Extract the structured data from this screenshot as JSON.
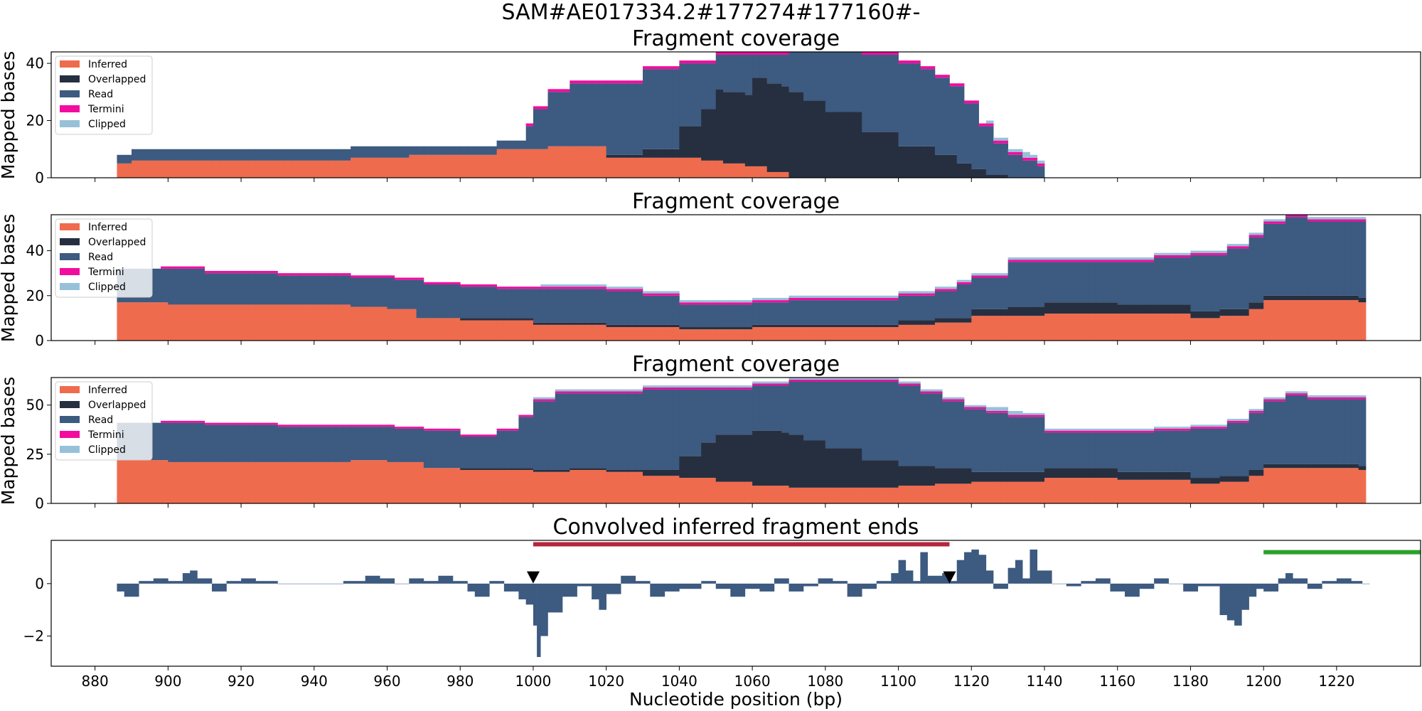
{
  "suptitle": "SAM#AE017334.2#177274#177160#-",
  "colors": {
    "inferred": "#ef6b4d",
    "overlapped": "#262f40",
    "read": "#3d5a80",
    "termini": "#f20d9f",
    "clipped": "#98c1d9",
    "ends_bar": "#3d5a80",
    "red_interval": "#b5253c",
    "green_interval": "#2ca02c",
    "marker": "#000000"
  },
  "chart_data": [
    {
      "type": "area",
      "title": "Fragment coverage",
      "ylabel": "Mapped bases",
      "xlim": [
        868,
        1243
      ],
      "ylim": [
        0,
        44
      ],
      "yticks": [
        0,
        20,
        40
      ],
      "legend": {
        "placement": "top-left",
        "entries": [
          "Inferred",
          "Overlapped",
          "Read",
          "Termini",
          "Clipped"
        ]
      },
      "series": {
        "inferred": {
          "name": "Inferred",
          "x": [
            886,
            890,
            920,
            950,
            966,
            990,
            1004,
            1012,
            1020,
            1030,
            1038,
            1046,
            1052,
            1058,
            1064,
            1070
          ],
          "values": [
            5,
            6,
            6,
            7,
            8,
            10,
            11,
            11,
            7,
            7,
            7,
            6,
            5,
            4,
            2,
            0
          ]
        },
        "overlapped": {
          "name": "Overlapped",
          "x": [
            886,
            1020,
            1030,
            1040,
            1046,
            1050,
            1060,
            1068,
            1074,
            1080,
            1090,
            1100,
            1110,
            1116,
            1120,
            1124,
            1130
          ],
          "values": [
            0,
            1,
            3,
            11,
            18,
            25,
            31,
            30,
            27,
            23,
            16,
            11,
            8,
            5,
            3,
            1,
            0
          ]
        },
        "total": {
          "name": "Read",
          "x": [
            886,
            890,
            930,
            950,
            980,
            990,
            998,
            1000,
            1004,
            1010,
            1020,
            1030,
            1040,
            1050,
            1060,
            1070,
            1080,
            1090,
            1100,
            1106,
            1110,
            1114,
            1118,
            1122,
            1126,
            1130,
            1134,
            1137,
            1139
          ],
          "values": [
            8,
            10,
            10,
            11,
            11,
            13,
            18,
            24,
            30,
            33,
            33,
            38,
            40,
            43,
            43,
            44,
            44,
            43,
            40,
            38,
            35,
            32,
            26,
            18,
            12,
            8,
            6,
            4,
            0
          ]
        },
        "termini": {
          "name": "Termini",
          "x": [
            998,
            1000,
            1004,
            1040,
            1064,
            1090,
            1110,
            1122
          ],
          "values": [
            1,
            1,
            1,
            1,
            1,
            1,
            1,
            1
          ]
        },
        "clipped": {
          "name": "Clipped",
          "x": [
            1124,
            1134,
            1136
          ],
          "values": [
            1,
            2,
            1
          ]
        }
      }
    },
    {
      "type": "area",
      "title": "Fragment coverage",
      "ylabel": "Mapped bases",
      "xlim": [
        868,
        1243
      ],
      "ylim": [
        0,
        56
      ],
      "yticks": [
        0,
        20,
        40
      ],
      "legend": {
        "placement": "top-left",
        "entries": [
          "Inferred",
          "Overlapped",
          "Read",
          "Termini",
          "Clipped"
        ]
      },
      "series": {
        "inferred": {
          "name": "Inferred",
          "x": [
            886,
            900,
            930,
            950,
            960,
            968,
            980,
            1000,
            1020,
            1040,
            1060,
            1080,
            1100,
            1110,
            1120,
            1140,
            1160,
            1180,
            1188,
            1196,
            1200,
            1214,
            1226,
            1228
          ],
          "values": [
            17,
            16,
            16,
            15,
            14,
            10,
            9,
            7,
            6,
            5,
            6,
            6,
            7,
            8,
            11,
            12,
            12,
            10,
            11,
            14,
            18,
            18,
            17,
            17
          ]
        },
        "overlapped": {
          "name": "Overlapped",
          "x": [
            886,
            960,
            980,
            1000,
            1040,
            1080,
            1100,
            1120,
            1130,
            1140,
            1160,
            1180,
            1200,
            1228
          ],
          "values": [
            0,
            0,
            1,
            1,
            1,
            1,
            2,
            3,
            4,
            5,
            4,
            3,
            2,
            1
          ]
        },
        "total": {
          "name": "Read",
          "x": [
            886,
            898,
            910,
            930,
            950,
            962,
            970,
            980,
            990,
            1000,
            1016,
            1020,
            1030,
            1040,
            1060,
            1070,
            1080,
            1100,
            1110,
            1116,
            1120,
            1130,
            1140,
            1160,
            1170,
            1180,
            1190,
            1196,
            1200,
            1206,
            1212,
            1220,
            1228
          ],
          "values": [
            32,
            32,
            30,
            29,
            28,
            27,
            25,
            24,
            23,
            23,
            23,
            22,
            20,
            16,
            17,
            18,
            18,
            20,
            22,
            25,
            28,
            35,
            35,
            35,
            37,
            38,
            41,
            46,
            52,
            55,
            53,
            53,
            53
          ]
        },
        "termini": {
          "name": "Termini",
          "x": [
            898,
            950,
            1030,
            1100,
            1126,
            1160,
            1196,
            1206
          ],
          "values": [
            1,
            1,
            1,
            1,
            1,
            1,
            1,
            1
          ]
        },
        "clipped": {
          "name": "Clipped",
          "x": [
            1002,
            1004
          ],
          "values": [
            1,
            1
          ]
        }
      }
    },
    {
      "type": "area",
      "title": "Fragment coverage",
      "ylabel": "Mapped bases",
      "xlim": [
        868,
        1243
      ],
      "ylim": [
        0,
        64
      ],
      "yticks": [
        0,
        25,
        50
      ],
      "legend": {
        "placement": "top-left",
        "entries": [
          "Inferred",
          "Overlapped",
          "Read",
          "Termini",
          "Clipped"
        ]
      },
      "series": {
        "inferred": {
          "name": "Inferred",
          "x": [
            886,
            900,
            930,
            950,
            960,
            970,
            980,
            1000,
            1010,
            1020,
            1030,
            1040,
            1050,
            1060,
            1070,
            1080,
            1090,
            1100,
            1110,
            1120,
            1140,
            1160,
            1180,
            1188,
            1196,
            1200,
            1214,
            1226,
            1228
          ],
          "values": [
            22,
            21,
            21,
            22,
            21,
            18,
            17,
            16,
            17,
            16,
            14,
            13,
            11,
            9,
            8,
            8,
            8,
            9,
            10,
            11,
            13,
            12,
            10,
            11,
            14,
            18,
            18,
            17,
            17
          ]
        },
        "overlapped": {
          "name": "Overlapped",
          "x": [
            886,
            960,
            980,
            1000,
            1020,
            1030,
            1040,
            1046,
            1050,
            1060,
            1068,
            1074,
            1080,
            1090,
            1100,
            1110,
            1120,
            1130,
            1140,
            1160,
            1180,
            1200,
            1228
          ],
          "values": [
            0,
            0,
            1,
            1,
            1,
            3,
            11,
            18,
            24,
            28,
            27,
            24,
            20,
            14,
            10,
            8,
            5,
            5,
            5,
            4,
            3,
            2,
            1
          ]
        },
        "total": {
          "name": "Read",
          "x": [
            886,
            898,
            910,
            930,
            950,
            962,
            970,
            980,
            990,
            996,
            1000,
            1006,
            1012,
            1020,
            1030,
            1040,
            1060,
            1070,
            1090,
            1100,
            1106,
            1112,
            1118,
            1124,
            1130,
            1140,
            1160,
            1170,
            1180,
            1190,
            1196,
            1200,
            1206,
            1212,
            1220,
            1228
          ],
          "values": [
            41,
            41,
            40,
            39,
            39,
            38,
            37,
            34,
            37,
            44,
            52,
            56,
            56,
            56,
            58,
            58,
            60,
            62,
            62,
            60,
            56,
            52,
            48,
            46,
            44,
            36,
            36,
            37,
            38,
            41,
            46,
            52,
            55,
            53,
            53,
            53
          ]
        },
        "termini": {
          "name": "Termini",
          "x": [
            898,
            950,
            1000,
            1030,
            1100,
            1126,
            1160,
            1196,
            1206
          ],
          "values": [
            1,
            1,
            1,
            1,
            1,
            1,
            1,
            1,
            1
          ]
        },
        "clipped": {
          "name": "Clipped",
          "x": [
            1000,
            1002,
            1124,
            1134
          ],
          "values": [
            1,
            1,
            2,
            1
          ]
        }
      }
    },
    {
      "type": "bar",
      "title": "Convolved inferred fragment ends",
      "xlabel": "Nucleotide position (bp)",
      "xlim": [
        868,
        1243
      ],
      "ylim": [
        -3.15,
        1.65
      ],
      "yticks": [
        -2,
        0
      ],
      "xticks": [
        880,
        900,
        920,
        940,
        960,
        980,
        1000,
        1020,
        1040,
        1060,
        1080,
        1100,
        1120,
        1140,
        1160,
        1180,
        1200,
        1220
      ],
      "ends": {
        "x": [
          886,
          888,
          892,
          896,
          900,
          904,
          906,
          908,
          912,
          916,
          920,
          924,
          930,
          948,
          954,
          958,
          962,
          966,
          970,
          974,
          978,
          982,
          984,
          988,
          992,
          996,
          998,
          1000,
          1001,
          1002,
          1004,
          1008,
          1012,
          1016,
          1018,
          1020,
          1024,
          1028,
          1032,
          1036,
          1040,
          1046,
          1050,
          1054,
          1058,
          1062,
          1066,
          1070,
          1074,
          1078,
          1082,
          1086,
          1090,
          1094,
          1098,
          1100,
          1102,
          1104,
          1106,
          1108,
          1112,
          1114,
          1116,
          1118,
          1120,
          1122,
          1124,
          1126,
          1130,
          1132,
          1134,
          1136,
          1138,
          1142,
          1146,
          1150,
          1154,
          1158,
          1162,
          1166,
          1170,
          1174,
          1178,
          1182,
          1188,
          1190,
          1192,
          1194,
          1196,
          1198,
          1200,
          1204,
          1206,
          1208,
          1212,
          1216,
          1220,
          1224,
          1227
        ],
        "values": [
          -0.3,
          -0.5,
          0.1,
          0.2,
          0.1,
          0.4,
          0.5,
          0.2,
          -0.3,
          0.1,
          0.2,
          0.1,
          0.0,
          0.1,
          0.3,
          0.2,
          0.0,
          0.2,
          0.1,
          0.3,
          0.1,
          -0.3,
          -0.5,
          0.1,
          -0.3,
          -0.6,
          -0.8,
          -1.6,
          -2.8,
          -2.0,
          -1.1,
          -0.5,
          -0.1,
          -0.6,
          -1.0,
          -0.4,
          0.3,
          0.1,
          -0.5,
          -0.3,
          -0.2,
          0.1,
          -0.2,
          -0.5,
          -0.2,
          -0.3,
          0.2,
          -0.3,
          -0.1,
          0.2,
          0.1,
          -0.5,
          -0.2,
          0.1,
          0.4,
          0.9,
          0.5,
          0.1,
          1.2,
          0.3,
          0.4,
          0.1,
          0.9,
          1.2,
          1.3,
          1.1,
          0.5,
          -0.2,
          0.6,
          0.9,
          0.2,
          1.3,
          0.5,
          0.0,
          -0.1,
          0.1,
          0.2,
          -0.3,
          -0.5,
          -0.2,
          0.2,
          0.0,
          -0.3,
          -0.1,
          -1.2,
          -1.4,
          -1.6,
          -1.0,
          -0.5,
          -0.2,
          -0.3,
          0.2,
          0.4,
          0.2,
          -0.2,
          0.1,
          0.2,
          0.1,
          0.0
        ]
      },
      "intervals": [
        {
          "color": "red",
          "x_start": 1000,
          "x_end": 1114,
          "y": 1.5
        },
        {
          "color": "green",
          "x_start": 1200,
          "x_end": 1245,
          "y": 1.2
        }
      ],
      "markers": [
        {
          "x": 1000,
          "y": 0.25,
          "symbol": "down-triangle"
        },
        {
          "x": 1114,
          "y": 0.25,
          "symbol": "down-triangle"
        }
      ]
    }
  ]
}
